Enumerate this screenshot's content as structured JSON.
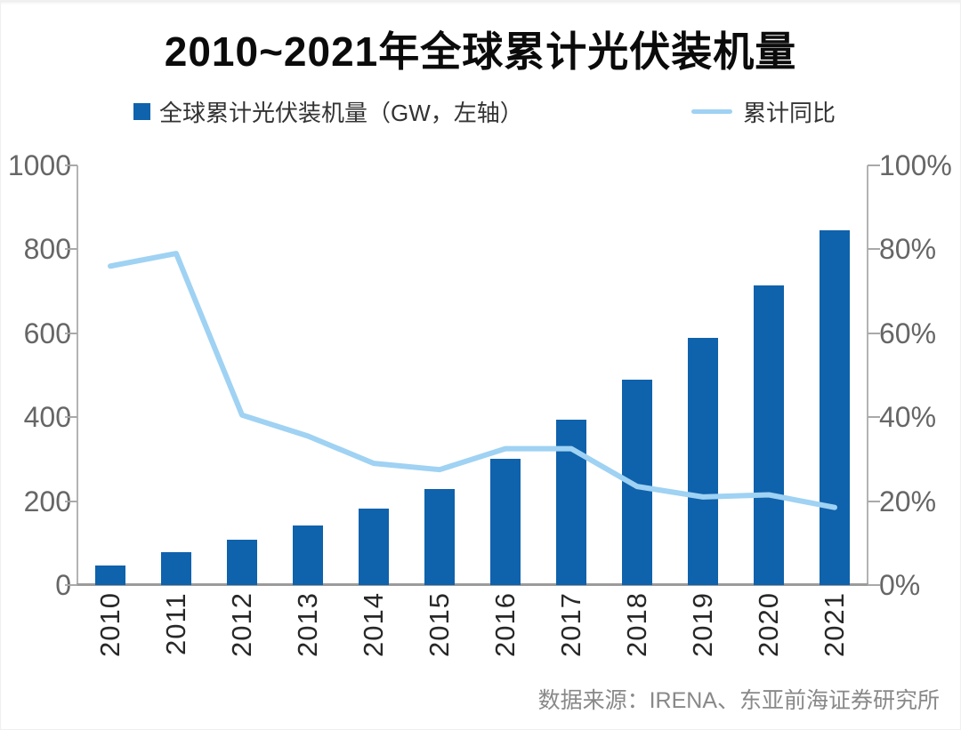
{
  "title": "2010~2021年全球累计光伏装机量",
  "legend": {
    "bar_label": "全球累计光伏装机量（GW，左轴）",
    "line_label": "累计同比"
  },
  "source": "数据来源：IRENA、东亚前海证券研究所",
  "colors": {
    "bar": "#0f62ac",
    "line": "#9fd2f3",
    "axis": "#a9a9a9",
    "tick_text": "#666666",
    "year_text": "#282828",
    "title_text": "#0b0b0b",
    "source_text": "#898989"
  },
  "chart_data": {
    "type": "bar",
    "subtype": "bar-line-combo",
    "categories": [
      "2010",
      "2011",
      "2012",
      "2013",
      "2014",
      "2015",
      "2016",
      "2017",
      "2018",
      "2019",
      "2020",
      "2021"
    ],
    "series": [
      {
        "name": "全球累计光伏装机量（GW，左轴）",
        "type": "bar",
        "axis": "left",
        "values": [
          46,
          78,
          107,
          141,
          183,
          228,
          300,
          395,
          489,
          588,
          713,
          845
        ]
      },
      {
        "name": "累计同比",
        "type": "line",
        "axis": "right",
        "values": [
          76,
          79,
          40.5,
          35.5,
          29,
          27.5,
          32.5,
          32.5,
          23.5,
          21,
          21.5,
          18.5
        ]
      }
    ],
    "left_axis": {
      "min": 0,
      "max": 1000,
      "ticks": [
        0,
        200,
        400,
        600,
        800,
        1000
      ],
      "labels": [
        "0",
        "200",
        "400",
        "600",
        "800",
        "1000"
      ]
    },
    "right_axis": {
      "min": 0,
      "max": 100,
      "ticks": [
        0,
        20,
        40,
        60,
        80,
        100
      ],
      "labels": [
        "0%",
        "20%",
        "40%",
        "60%",
        "80%",
        "100%"
      ]
    },
    "grid": false,
    "legend_position": "top",
    "title": "2010~2021年全球累计光伏装机量"
  }
}
